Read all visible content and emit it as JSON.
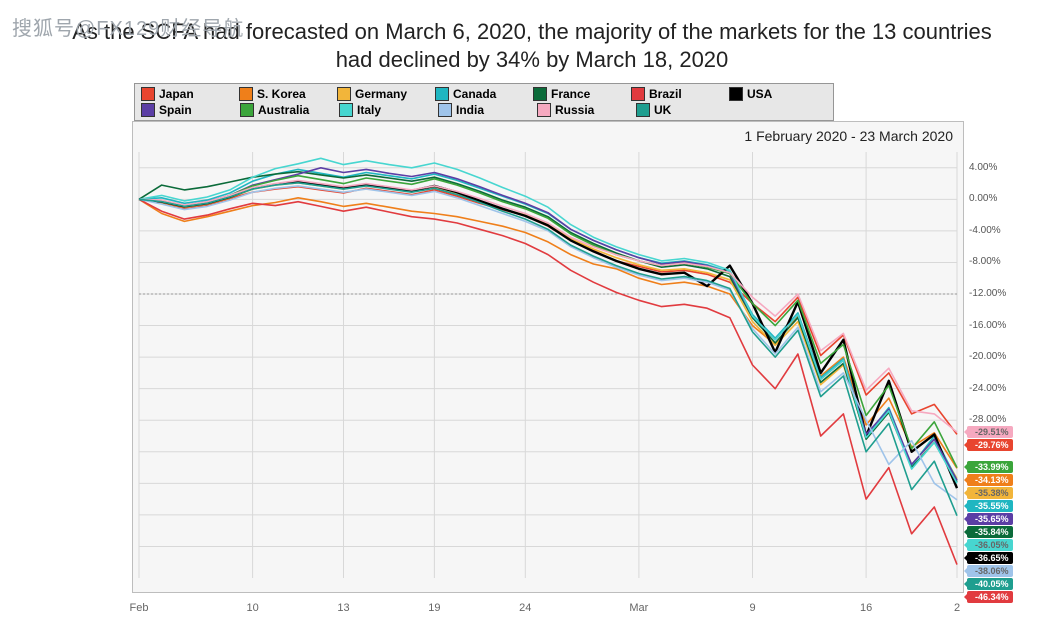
{
  "watermark": "搜狐号@FX129财经导航",
  "title_line1": "As the SCFA had forecasted on March 6, 2020, the majority of the markets for the 13 countries",
  "title_line2": "had declined by 34% by March 18, 2020",
  "date_range": "1 February 2020 - 23 March 2020",
  "chart": {
    "type": "line",
    "background_color": "#f6f6f6",
    "grid_color": "#d8d8d8",
    "reference_line_y": -12.0,
    "reference_line_color": "#969696",
    "ylim": [
      -48,
      6
    ],
    "ytick_step": 4,
    "yticks": [
      4,
      0,
      -4,
      -8,
      -12,
      -16,
      -20,
      -24,
      -28,
      -32,
      -36,
      -40,
      -44
    ],
    "ytick_labels": [
      "4.00%",
      "0.00%",
      "-4.00%",
      "-8.00%",
      "-12.00%",
      "-16.00%",
      "-20.00%",
      "-24.00%",
      "-28.00%",
      "",
      "",
      "",
      ""
    ],
    "x_count": 37,
    "xticks": [
      {
        "i": 0,
        "label": "Feb"
      },
      {
        "i": 5,
        "label": "10"
      },
      {
        "i": 9,
        "label": "13"
      },
      {
        "i": 13,
        "label": "19"
      },
      {
        "i": 17,
        "label": "24"
      },
      {
        "i": 22,
        "label": "Mar"
      },
      {
        "i": 27,
        "label": "9"
      },
      {
        "i": 32,
        "label": "16"
      },
      {
        "i": 36,
        "label": "2"
      }
    ],
    "series": [
      {
        "name": "Japan",
        "color": "#e8452f",
        "end_label": "-29.76%",
        "end_text_color": "#ffffff",
        "width": 1.6,
        "data": [
          0,
          -0.5,
          -1.2,
          -0.8,
          0.1,
          0.9,
          1.3,
          1.6,
          1.2,
          0.8,
          1.4,
          1.0,
          0.6,
          1.2,
          0.4,
          -0.5,
          -1.3,
          -2.1,
          -3.4,
          -5.2,
          -6.5,
          -7.8,
          -8.5,
          -9.2,
          -9.0,
          -9.5,
          -10.5,
          -13.2,
          -15.5,
          -12.4,
          -19.8,
          -17.2,
          -24.8,
          -22.0,
          -27.2,
          -26.0,
          -29.8
        ]
      },
      {
        "name": "S. Korea",
        "color": "#ef7f1a",
        "end_label": "-34.13%",
        "end_text_color": "#ffffff",
        "width": 1.6,
        "data": [
          0,
          -1.8,
          -2.8,
          -2.2,
          -1.5,
          -0.8,
          -0.4,
          0.2,
          -0.3,
          -0.9,
          -0.5,
          -1.0,
          -1.5,
          -1.8,
          -2.2,
          -2.8,
          -3.4,
          -4.2,
          -5.4,
          -7.0,
          -8.2,
          -8.8,
          -10.0,
          -10.8,
          -10.5,
          -11.0,
          -12.0,
          -16.0,
          -18.4,
          -14.8,
          -22.4,
          -20.0,
          -28.6,
          -25.2,
          -31.4,
          -29.6,
          -34.1
        ]
      },
      {
        "name": "Germany",
        "color": "#f2b53a",
        "end_label": "-35.38%",
        "end_text_color": "#666",
        "width": 1.6,
        "data": [
          0,
          -0.4,
          -1.0,
          -0.6,
          0.2,
          1.3,
          1.8,
          2.1,
          1.7,
          1.3,
          1.8,
          1.4,
          1.1,
          1.6,
          0.8,
          -0.2,
          -1.2,
          -2.0,
          -3.2,
          -5.0,
          -6.3,
          -7.4,
          -8.3,
          -9.0,
          -8.8,
          -9.3,
          -10.2,
          -15.5,
          -18.5,
          -15.5,
          -23.5,
          -21.0,
          -30.2,
          -27.0,
          -33.6,
          -30.4,
          -35.4
        ]
      },
      {
        "name": "Canada",
        "color": "#1fb6c1",
        "end_label": "-35.55%",
        "end_text_color": "#ffffff",
        "width": 1.6,
        "data": [
          0,
          0.2,
          -0.5,
          -0.1,
          0.8,
          2.3,
          3.2,
          3.8,
          3.3,
          2.8,
          3.4,
          3.0,
          2.6,
          3.2,
          2.4,
          1.4,
          0.4,
          -0.6,
          -1.8,
          -3.8,
          -5.2,
          -6.4,
          -7.4,
          -8.1,
          -7.8,
          -8.3,
          -9.2,
          -14.6,
          -17.6,
          -14.4,
          -22.6,
          -20.2,
          -30.0,
          -26.4,
          -33.8,
          -30.0,
          -35.6
        ]
      },
      {
        "name": "France",
        "color": "#0b6b3a",
        "end_label": "-35.84%",
        "end_text_color": "#ffffff",
        "width": 1.6,
        "data": [
          0,
          1.8,
          1.2,
          1.6,
          2.2,
          2.8,
          3.2,
          3.5,
          3.1,
          2.7,
          3.1,
          2.7,
          2.3,
          2.8,
          2.0,
          1.0,
          -0.1,
          -1.0,
          -2.2,
          -4.2,
          -5.6,
          -6.8,
          -7.8,
          -8.6,
          -8.3,
          -8.8,
          -9.8,
          -15.0,
          -18.2,
          -15.0,
          -23.2,
          -20.8,
          -30.4,
          -27.0,
          -34.0,
          -30.8,
          -35.8
        ]
      },
      {
        "name": "Brazil",
        "color": "#e13b3f",
        "end_label": "-46.34%",
        "end_text_color": "#ffffff",
        "width": 1.6,
        "data": [
          0,
          -1.5,
          -2.5,
          -2.0,
          -1.2,
          -0.5,
          -0.8,
          -0.3,
          -0.9,
          -1.5,
          -1.0,
          -1.6,
          -2.2,
          -2.5,
          -3.0,
          -3.8,
          -4.6,
          -5.6,
          -7.0,
          -9.0,
          -10.5,
          -11.8,
          -12.8,
          -13.6,
          -13.3,
          -13.8,
          -15.0,
          -21.0,
          -24.0,
          -19.6,
          -30.0,
          -27.2,
          -38.0,
          -34.0,
          -42.4,
          -39.0,
          -46.3
        ]
      },
      {
        "name": "USA",
        "color": "#000000",
        "end_label": "-36.65%",
        "end_text_color": "#ffffff",
        "width": 2.4,
        "data": [
          0,
          -0.3,
          -0.9,
          -0.5,
          0.3,
          1.4,
          1.9,
          2.3,
          1.8,
          1.4,
          1.9,
          1.5,
          1.1,
          1.7,
          0.9,
          -0.2,
          -1.2,
          -2.1,
          -3.3,
          -5.2,
          -6.6,
          -7.8,
          -8.8,
          -9.5,
          -9.3,
          -11.0,
          -8.4,
          -13.2,
          -19.4,
          -13.0,
          -22.0,
          -17.8,
          -30.0,
          -23.0,
          -32.0,
          -29.8,
          -36.6
        ]
      },
      {
        "name": "Spain",
        "color": "#5b3ea5",
        "end_label": "-35.65%",
        "end_text_color": "#ffffff",
        "width": 1.6,
        "data": [
          0,
          -0.2,
          -0.8,
          -0.3,
          0.5,
          1.8,
          2.5,
          3.2,
          4.0,
          3.4,
          3.8,
          3.3,
          2.9,
          3.4,
          2.6,
          1.6,
          0.5,
          -0.5,
          -1.7,
          -3.8,
          -5.2,
          -6.4,
          -7.4,
          -8.2,
          -7.9,
          -8.4,
          -9.4,
          -14.8,
          -17.8,
          -14.6,
          -22.8,
          -20.4,
          -29.8,
          -26.6,
          -33.6,
          -30.4,
          -35.6
        ]
      },
      {
        "name": "Australia",
        "color": "#3ba53b",
        "end_label": "-33.99%",
        "end_text_color": "#ffffff",
        "width": 1.6,
        "data": [
          0,
          -0.2,
          -0.8,
          -0.4,
          0.5,
          1.7,
          2.4,
          3.0,
          2.5,
          2.0,
          2.7,
          2.3,
          1.9,
          2.6,
          1.8,
          0.8,
          -0.3,
          -1.2,
          -2.4,
          -4.4,
          -5.8,
          -7.0,
          -7.8,
          -8.4,
          -8.1,
          -8.6,
          -9.4,
          -13.2,
          -16.0,
          -12.8,
          -20.8,
          -18.4,
          -27.4,
          -23.6,
          -31.6,
          -28.2,
          -34.0
        ]
      },
      {
        "name": "Italy",
        "color": "#47d6d0",
        "end_label": "-36.05%",
        "end_text_color": "#666",
        "width": 1.6,
        "data": [
          0,
          0.5,
          -0.2,
          0.3,
          1.2,
          2.8,
          3.9,
          4.5,
          5.2,
          4.4,
          4.9,
          4.4,
          4.0,
          4.6,
          3.8,
          2.7,
          1.5,
          0.4,
          -1.0,
          -3.2,
          -4.8,
          -6.0,
          -7.0,
          -7.8,
          -7.5,
          -8.0,
          -9.0,
          -14.8,
          -17.8,
          -14.6,
          -22.8,
          -20.4,
          -30.2,
          -26.8,
          -34.2,
          -30.8,
          -36.0
        ]
      },
      {
        "name": "India",
        "color": "#9fc4ea",
        "end_label": "-38.06%",
        "end_text_color": "#666",
        "width": 1.6,
        "data": [
          0,
          -0.6,
          -1.3,
          -0.9,
          -0.1,
          0.9,
          1.4,
          1.7,
          1.3,
          0.9,
          1.3,
          0.9,
          0.5,
          1.0,
          0.2,
          -0.8,
          -1.8,
          -2.8,
          -4.0,
          -6.0,
          -7.4,
          -8.6,
          -9.6,
          -10.3,
          -10.0,
          -10.5,
          -11.5,
          -16.4,
          -19.6,
          -16.2,
          -24.4,
          -22.0,
          -28.0,
          -33.6,
          -30.6,
          -36.0,
          -38.1
        ]
      },
      {
        "name": "Russia",
        "color": "#f6a9c0",
        "end_label": "-29.51%",
        "end_text_color": "#666",
        "width": 1.6,
        "data": [
          0,
          -0.1,
          -0.7,
          -0.3,
          0.5,
          1.5,
          2.0,
          2.4,
          2.0,
          1.6,
          2.0,
          1.6,
          1.2,
          1.7,
          1.0,
          0.1,
          -0.9,
          -1.8,
          -3.0,
          -4.8,
          -6.0,
          -7.0,
          -7.8,
          -8.4,
          -8.1,
          -8.5,
          -9.3,
          -12.4,
          -14.8,
          -12.0,
          -19.2,
          -17.0,
          -24.2,
          -21.4,
          -26.8,
          -27.2,
          -29.5
        ]
      },
      {
        "name": "UK",
        "color": "#1f9e8f",
        "end_label": "-40.05%",
        "end_text_color": "#ffffff",
        "width": 1.6,
        "data": [
          0,
          -0.3,
          -0.9,
          -0.5,
          0.3,
          1.3,
          1.8,
          2.1,
          1.7,
          1.3,
          1.7,
          1.3,
          0.9,
          1.4,
          0.6,
          -0.4,
          -1.5,
          -2.5,
          -3.8,
          -5.8,
          -7.2,
          -8.4,
          -9.4,
          -10.1,
          -9.8,
          -10.3,
          -11.3,
          -16.8,
          -20.0,
          -16.6,
          -25.0,
          -22.4,
          -32.0,
          -28.4,
          -36.8,
          -33.2,
          -40.1
        ]
      }
    ],
    "legend_rows": [
      [
        "Japan",
        "S. Korea",
        "Germany",
        "Canada",
        "France",
        "Brazil",
        "USA"
      ],
      [
        "Spain",
        "Australia",
        "Italy",
        "India",
        "Russia",
        "UK"
      ]
    ]
  }
}
